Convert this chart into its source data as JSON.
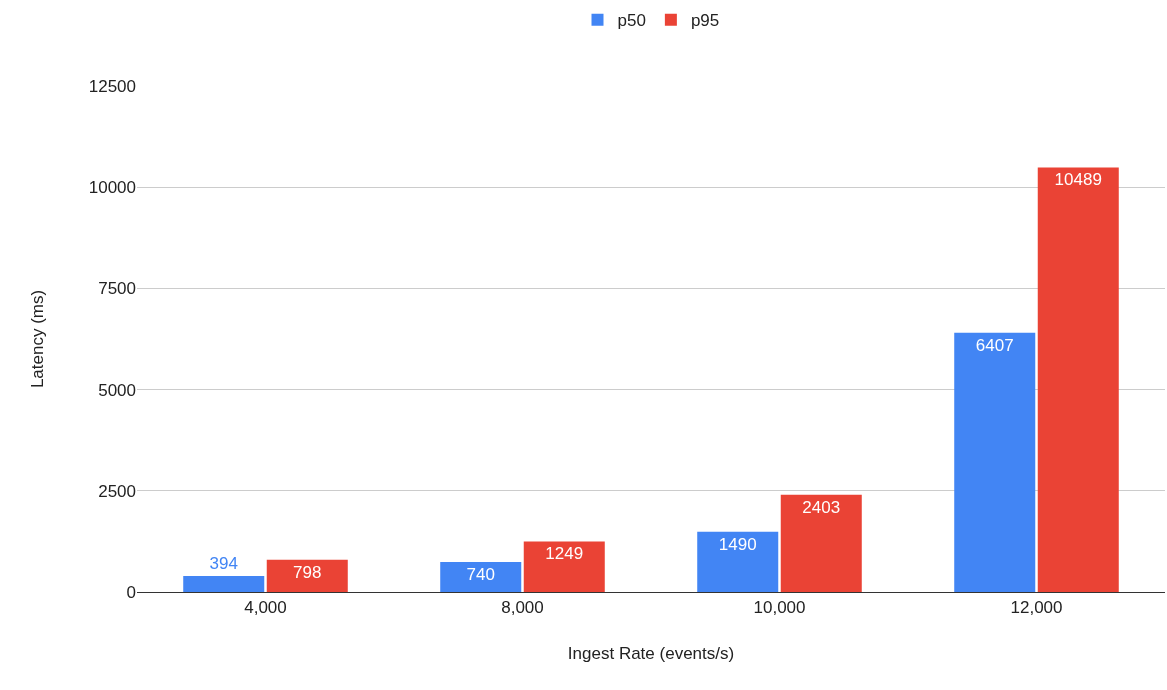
{
  "chart_data": {
    "type": "bar",
    "xlabel": "Ingest Rate (events/s)",
    "ylabel": "Latency (ms)",
    "categories": [
      "4,000",
      "8,000",
      "10,000",
      "12,000"
    ],
    "series": [
      {
        "name": "p50",
        "color": "#4285f4",
        "values": [
          394,
          740,
          1490,
          6407
        ]
      },
      {
        "name": "p95",
        "color": "#ea4335",
        "values": [
          798,
          1249,
          2403,
          10489
        ]
      }
    ],
    "ylim": [
      0,
      12500
    ],
    "yticks": [
      0,
      2500,
      5000,
      7500,
      10000,
      12500
    ],
    "grid": "y",
    "legend": "top",
    "data_labels": true
  }
}
